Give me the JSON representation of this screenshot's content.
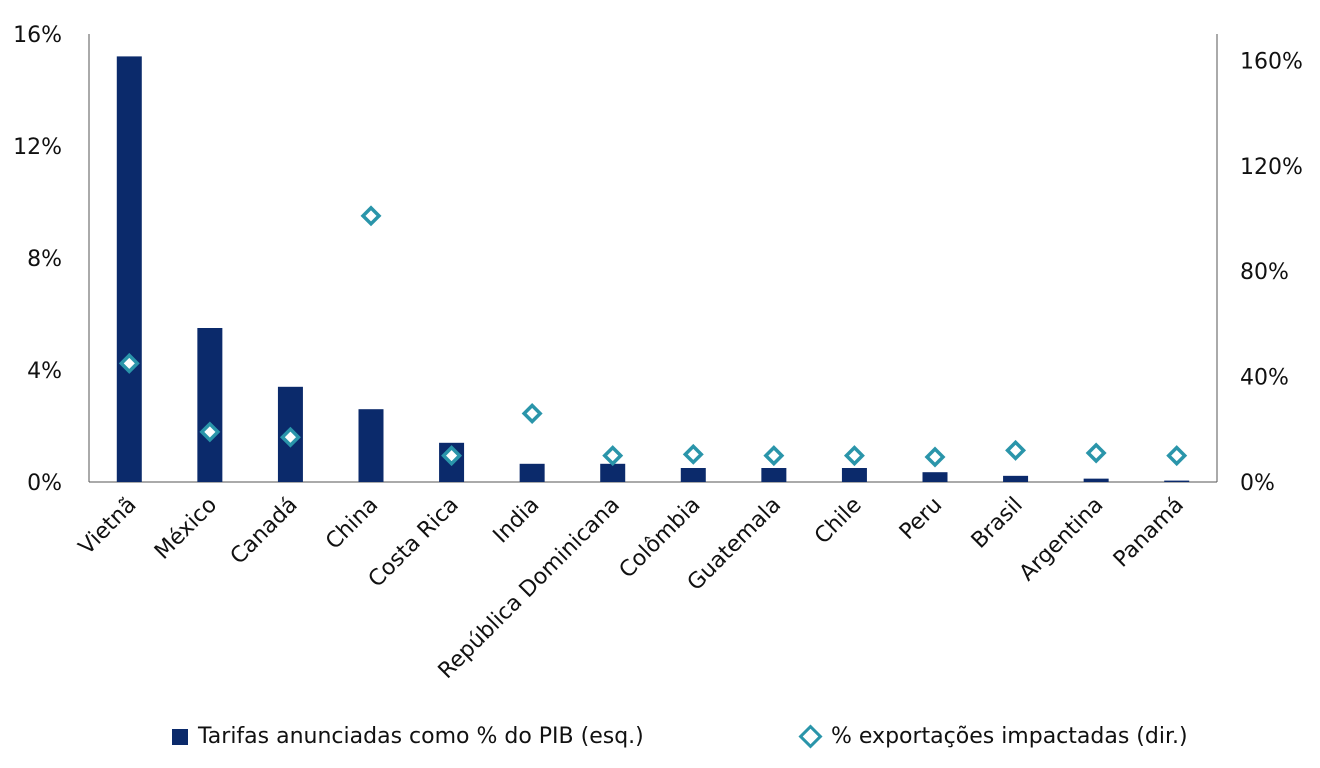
{
  "chart_data": {
    "type": "bar",
    "categories": [
      "Vietnã",
      "México",
      "Canadá",
      "China",
      "Costa Rica",
      "India",
      "República Dominicana",
      "Colômbia",
      "Guatemala",
      "Chile",
      "Peru",
      "Brasil",
      "Argentina",
      "Panamá"
    ],
    "series": [
      {
        "name": "Tarifas anunciadas como % do PIB (esq.)",
        "type": "bar",
        "axis": "left",
        "values": [
          15.2,
          5.5,
          3.4,
          2.6,
          1.4,
          0.65,
          0.65,
          0.5,
          0.5,
          0.5,
          0.35,
          0.22,
          0.12,
          0.05
        ]
      },
      {
        "name": "% exportações impactadas (dir.)",
        "type": "scatter",
        "axis": "right",
        "values": [
          45,
          19,
          17,
          101,
          10,
          26,
          10,
          10.5,
          10,
          10,
          9.5,
          12,
          11,
          10
        ]
      }
    ],
    "y_left": {
      "min": 0,
      "max": 16,
      "ticks": [
        0,
        4,
        8,
        12,
        16
      ],
      "tick_labels": [
        "0%",
        "4%",
        "8%",
        "12%",
        "16%"
      ]
    },
    "y_right": {
      "min": 0,
      "max": 170,
      "ticks": [
        0,
        40,
        80,
        120,
        160
      ],
      "tick_labels": [
        "0%",
        "40%",
        "80%",
        "120%",
        "160%"
      ]
    },
    "grid": false,
    "legend_position": "bottom",
    "colors": {
      "bar": "#0b2a6b",
      "marker": "#2a95aa",
      "axis": "#555555"
    }
  },
  "legend": {
    "bar_label": "Tarifas anunciadas como % do PIB (esq.)",
    "marker_label": "% exportações impactadas (dir.)"
  }
}
